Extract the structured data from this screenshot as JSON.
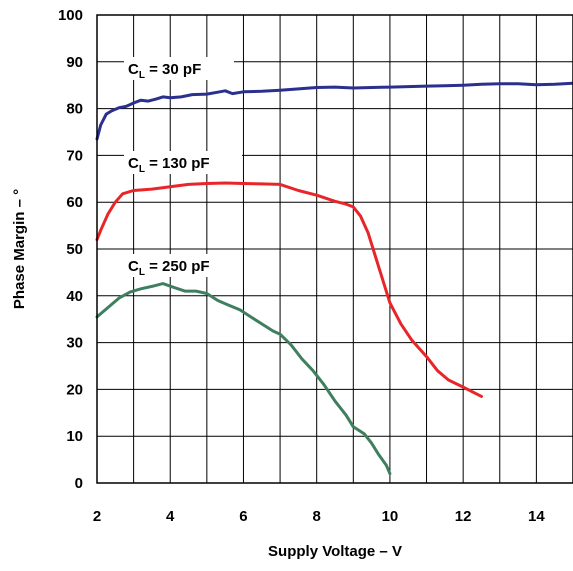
{
  "chart_data": {
    "type": "line",
    "xlabel": "Supply Voltage – V",
    "ylabel": "Phase Margin – °",
    "xlim": [
      2,
      15
    ],
    "ylim": [
      0,
      100
    ],
    "xticks": [
      2,
      4,
      6,
      8,
      10,
      12,
      14
    ],
    "yticks": [
      0,
      10,
      20,
      30,
      40,
      50,
      60,
      70,
      80,
      90,
      100
    ],
    "grid": true,
    "series": [
      {
        "name": "CL = 30 pF",
        "label_main": "C",
        "label_sub": "L",
        "label_rest": " = 30 pF",
        "color": "#2b2f8e",
        "x": [
          2.0,
          2.1,
          2.25,
          2.4,
          2.6,
          2.8,
          3.0,
          3.2,
          3.4,
          3.6,
          3.8,
          4.0,
          4.3,
          4.6,
          5.0,
          5.3,
          5.5,
          5.7,
          6.0,
          6.5,
          7.0,
          7.5,
          8.0,
          8.5,
          9.0,
          9.5,
          10.0,
          10.5,
          11.0,
          11.5,
          12.0,
          12.5,
          13.0,
          13.5,
          14.0,
          14.5,
          15.0
        ],
        "y": [
          73.5,
          76.5,
          78.8,
          79.5,
          80.2,
          80.5,
          81.2,
          81.8,
          81.6,
          82.0,
          82.5,
          82.3,
          82.5,
          83.0,
          83.1,
          83.5,
          83.8,
          83.2,
          83.6,
          83.7,
          83.9,
          84.2,
          84.5,
          84.6,
          84.4,
          84.5,
          84.6,
          84.7,
          84.8,
          84.9,
          85.0,
          85.2,
          85.3,
          85.3,
          85.1,
          85.2,
          85.4
        ]
      },
      {
        "name": "CL = 130 pF",
        "label_main": "C",
        "label_sub": "L",
        "label_rest": " = 130 pF",
        "color": "#e8262a",
        "x": [
          2.0,
          2.1,
          2.3,
          2.5,
          2.7,
          3.0,
          3.5,
          4.0,
          4.5,
          5.0,
          5.5,
          6.0,
          6.5,
          7.0,
          7.5,
          8.0,
          8.5,
          8.8,
          9.0,
          9.2,
          9.4,
          9.6,
          9.8,
          10.0,
          10.3,
          10.6,
          11.0,
          11.3,
          11.6,
          12.0,
          12.5
        ],
        "y": [
          52.0,
          54.0,
          57.5,
          60.0,
          61.8,
          62.5,
          62.8,
          63.3,
          63.8,
          64.0,
          64.1,
          64.0,
          63.9,
          63.8,
          62.5,
          61.5,
          60.2,
          59.6,
          59.0,
          57.0,
          53.5,
          48.5,
          43.5,
          38.5,
          34.0,
          30.5,
          27.0,
          24.0,
          22.0,
          20.5,
          18.5
        ]
      },
      {
        "name": "CL = 250 pF",
        "label_main": "C",
        "label_sub": "L",
        "label_rest": " = 250 pF",
        "color": "#3f7f5f",
        "x": [
          2.0,
          2.3,
          2.6,
          2.9,
          3.2,
          3.5,
          3.8,
          4.1,
          4.4,
          4.7,
          5.0,
          5.3,
          5.6,
          5.9,
          6.2,
          6.5,
          6.8,
          7.0,
          7.3,
          7.6,
          7.9,
          8.2,
          8.5,
          8.8,
          9.0,
          9.3,
          9.5,
          9.7,
          9.9,
          10.0
        ],
        "y": [
          35.5,
          37.5,
          39.5,
          40.8,
          41.5,
          42.0,
          42.6,
          41.8,
          41.0,
          41.0,
          40.5,
          39.0,
          38.0,
          37.0,
          35.5,
          34.0,
          32.5,
          31.8,
          29.5,
          26.5,
          24.0,
          21.0,
          17.5,
          14.5,
          12.0,
          10.5,
          8.5,
          6.0,
          3.8,
          2.0
        ]
      }
    ]
  }
}
